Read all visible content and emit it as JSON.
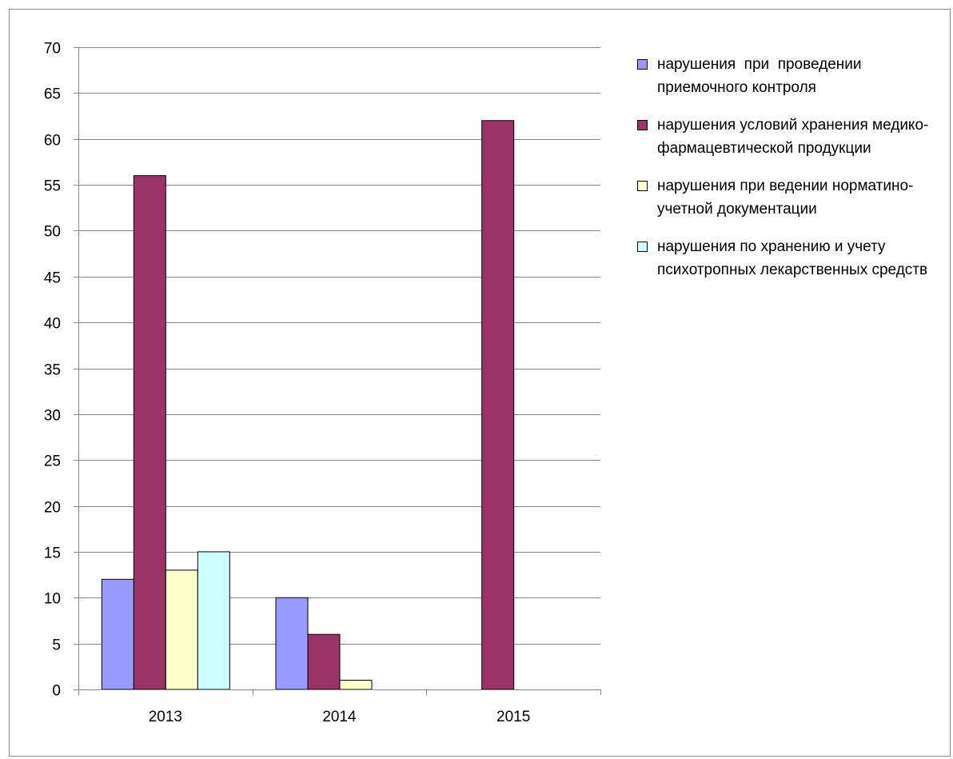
{
  "chart_data": {
    "type": "bar",
    "title": "",
    "xlabel": "",
    "ylabel": "",
    "categories": [
      "2013",
      "2014",
      "2015"
    ],
    "ylim": [
      0,
      70
    ],
    "yticks": [
      0,
      5,
      10,
      15,
      20,
      25,
      30,
      35,
      40,
      45,
      50,
      55,
      60,
      65,
      70
    ],
    "grid": true,
    "legend_position": "right",
    "series": [
      {
        "name": "нарушения  при  проведении приемочного контроля",
        "color": "#9999ff",
        "values": [
          12,
          10,
          0
        ]
      },
      {
        "name": "нарушения условий хранения медико-фармацевтической продукции",
        "color": "#993366",
        "values": [
          56,
          6,
          62
        ]
      },
      {
        "name": "нарушения при ведении норматино-учетной документации",
        "color": "#ffffcc",
        "values": [
          13,
          1,
          0
        ]
      },
      {
        "name": "нарушения по хранению и учету психотропных лекарственных средств",
        "color": "#ccffff",
        "values": [
          15,
          0,
          0
        ]
      }
    ]
  }
}
